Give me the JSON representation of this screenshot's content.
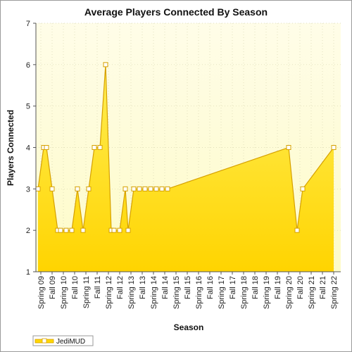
{
  "chart_data": {
    "type": "area",
    "title": "Average Players Connected By Season",
    "xlabel": "Season",
    "ylabel": "Players Connected",
    "ylim": [
      1,
      7
    ],
    "yticks": [
      1,
      2,
      3,
      4,
      5,
      6,
      7
    ],
    "grid": true,
    "legend_position": "bottom-left",
    "x_tick_labels": [
      "Spring 09",
      "Fall 09",
      "Spring 10",
      "Fall 10",
      "Spring 11",
      "Fall 11",
      "Spring 12",
      "Fall 12",
      "Spring 13",
      "Fall 13",
      "Spring 14",
      "Fall 14",
      "Spring 15",
      "Fall 15",
      "Spring 16",
      "Fall 16",
      "Spring 17",
      "Fall 17",
      "Spring 18",
      "Fall 18",
      "Spring 19",
      "Fall 19",
      "Spring 20",
      "Fall 20",
      "Spring 21",
      "Fall 21",
      "Spring 22"
    ],
    "series": [
      {
        "name": "JediMUD",
        "color": "#ffd700",
        "line_color": "#d6a000",
        "marker_fill": "#ffffff",
        "x": [
          "Spring 09",
          "Spring 09",
          "Fall 09",
          "Fall 09",
          "Fall 09",
          "Spring 10",
          "Spring 10",
          "Fall 10",
          "Fall 10",
          "Spring 11",
          "Spring 11",
          "Fall 11",
          "Fall 11",
          "Spring 12",
          "Spring 12",
          "Fall 12",
          "Fall 12",
          "Fall 12",
          "Spring 13",
          "Spring 13",
          "Fall 13",
          "Fall 13",
          "Spring 14",
          "Spring 14",
          "Fall 14",
          "Fall 14",
          "Spring 20",
          "Fall 20",
          "Fall 20",
          "Spring 22"
        ],
        "values": [
          3,
          4,
          4,
          3,
          2,
          2,
          2,
          2,
          3,
          2,
          3,
          4,
          4,
          6,
          2,
          2,
          2,
          3,
          2,
          3,
          3,
          3,
          3,
          3,
          3,
          3,
          4,
          2,
          3,
          4
        ]
      }
    ]
  }
}
